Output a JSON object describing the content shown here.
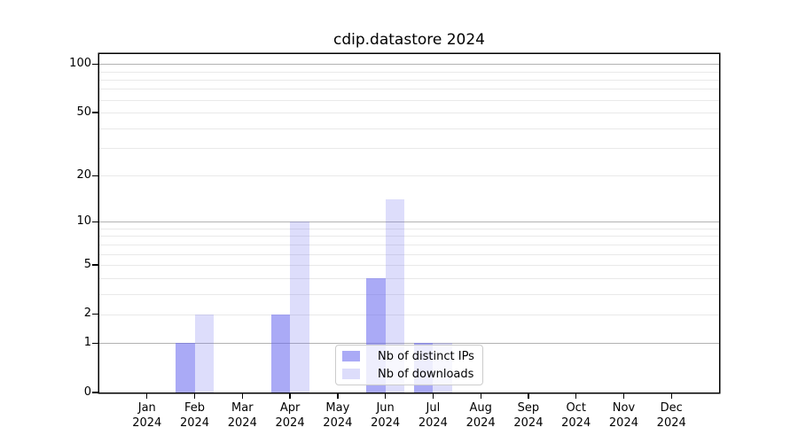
{
  "chart_data": {
    "type": "bar",
    "title": "cdip.datastore 2024",
    "categories": [
      "Jan",
      "Feb",
      "Mar",
      "Apr",
      "May",
      "Jun",
      "Jul",
      "Aug",
      "Sep",
      "Oct",
      "Nov",
      "Dec"
    ],
    "year_label": "2024",
    "series": [
      {
        "name": "Nb of distinct IPs",
        "color": "#6464ee",
        "alpha": 0.55,
        "values": [
          0,
          1,
          0,
          2,
          0,
          4,
          1,
          0,
          0,
          0,
          0,
          0
        ]
      },
      {
        "name": "Nb of downloads",
        "color": "#6464ee",
        "alpha": 0.22,
        "values": [
          0,
          2,
          0,
          10,
          0,
          14,
          1,
          0,
          0,
          0,
          0,
          0
        ]
      }
    ],
    "yscale": "log1p",
    "ylim": [
      0,
      115
    ],
    "yticks": [
      0,
      1,
      2,
      5,
      10,
      20,
      50,
      100
    ],
    "major_gridlines": [
      1,
      10,
      100
    ],
    "minor_gridlines": [
      2,
      3,
      4,
      5,
      6,
      7,
      8,
      9,
      20,
      30,
      40,
      50,
      60,
      70,
      80,
      90
    ],
    "grid_color_major": "#b2b2b2",
    "grid_color_minor": "#e9e9e9",
    "axis_color": "#000000",
    "legend_position": "lower center",
    "grid": "horizontal"
  }
}
